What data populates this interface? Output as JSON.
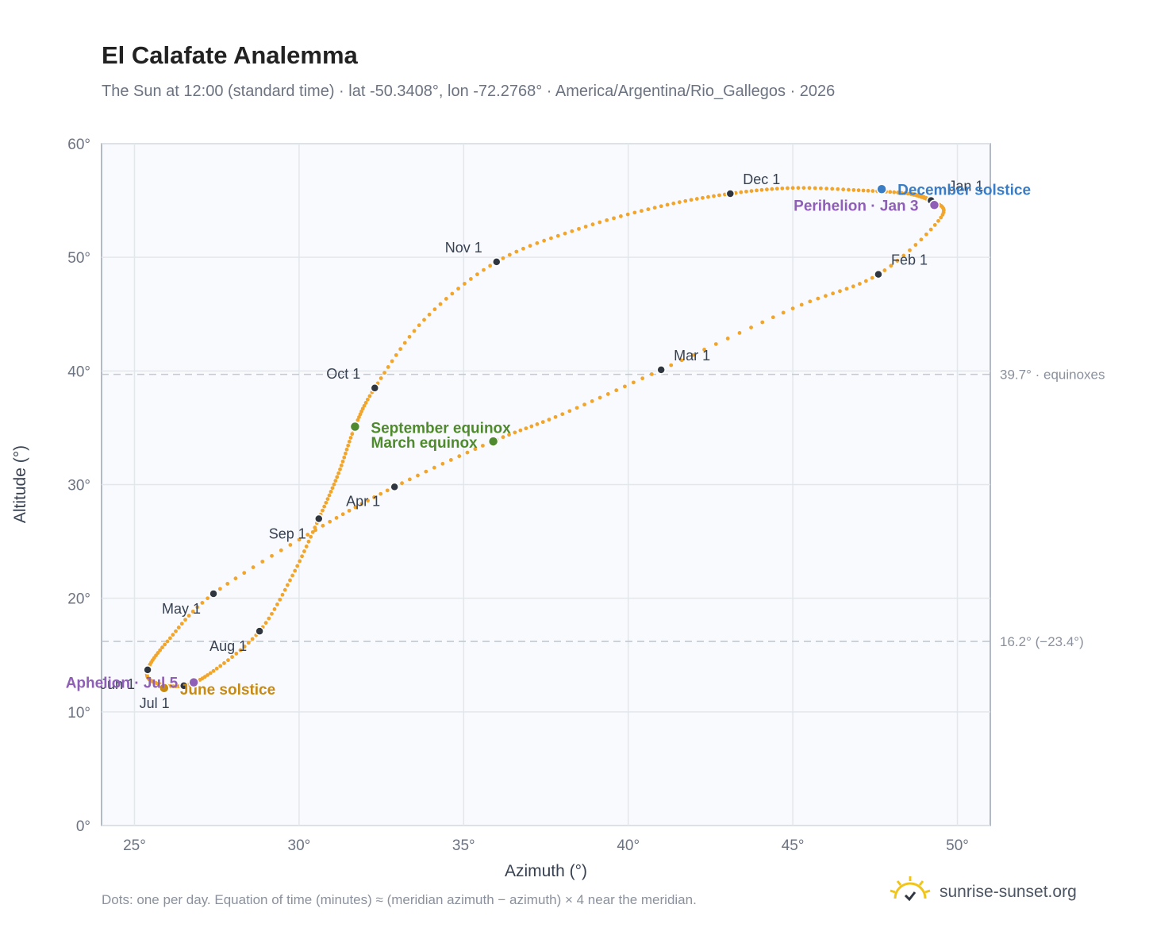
{
  "chart_data": {
    "type": "scatter",
    "title": "El Calafate Analemma",
    "subtitle": "The Sun at 12:00 (standard time) · lat -50.3408°, lon -72.2768° · America/Argentina/Rio_Gallegos · 2026",
    "xlabel": "Azimuth (°)",
    "ylabel": "Altitude (°)",
    "xlim": [
      24,
      51
    ],
    "ylim": [
      0,
      60
    ],
    "xticks": [
      25,
      30,
      35,
      40,
      45,
      50
    ],
    "yticks": [
      0,
      10,
      20,
      30,
      40,
      50,
      60
    ],
    "x_tick_labels": [
      "25°",
      "30°",
      "35°",
      "40°",
      "45°",
      "50°"
    ],
    "y_tick_labels": [
      "0°",
      "10°",
      "20°",
      "30°",
      "40°",
      "50°",
      "60°"
    ],
    "grid": true,
    "curve_color": "#f2a52b",
    "series": [
      {
        "points_per_day": true,
        "x": [
          48.6,
          49.2,
          49.5,
          47.6,
          45.0,
          41.0,
          38.0,
          35.8,
          32.9,
          30.5,
          27.4,
          26.0,
          25.4,
          25.6,
          26.5,
          27.4,
          28.8,
          29.8,
          30.6,
          31.2,
          31.7,
          32.3,
          33.8,
          36.0,
          38.5,
          41.0,
          43.1,
          45.0,
          47.0,
          48.5,
          49.2,
          48.6
        ],
        "y": [
          55.6,
          55.0,
          53.5,
          48.5,
          45.5,
          40.1,
          36.2,
          33.7,
          29.8,
          26.0,
          20.4,
          16.2,
          13.7,
          12.6,
          12.3,
          13.6,
          17.1,
          22.0,
          27.0,
          31.0,
          35.1,
          38.5,
          44.5,
          49.6,
          52.5,
          54.5,
          55.6,
          56.1,
          55.9,
          55.6,
          55.0,
          55.6
        ]
      }
    ],
    "month_markers": [
      {
        "label": "Jan 1",
        "x": 49.2,
        "y": 55.0,
        "color": "#2f3640"
      },
      {
        "label": "Feb 1",
        "x": 47.6,
        "y": 48.5,
        "color": "#2f3640"
      },
      {
        "label": "Mar 1",
        "x": 41.0,
        "y": 40.1,
        "color": "#2f3640"
      },
      {
        "label": "Apr 1",
        "x": 32.9,
        "y": 29.8,
        "color": "#2f3640"
      },
      {
        "label": "May 1",
        "x": 27.4,
        "y": 20.4,
        "color": "#2f3640"
      },
      {
        "label": "Jun 1",
        "x": 25.4,
        "y": 13.7,
        "color": "#2f3640"
      },
      {
        "label": "Jul 1",
        "x": 26.5,
        "y": 12.3,
        "color": "#2f3640"
      },
      {
        "label": "Aug 1",
        "x": 28.8,
        "y": 17.1,
        "color": "#2f3640"
      },
      {
        "label": "Sep 1",
        "x": 30.6,
        "y": 27.0,
        "color": "#2f3640"
      },
      {
        "label": "Oct 1",
        "x": 32.3,
        "y": 38.5,
        "color": "#2f3640"
      },
      {
        "label": "Nov 1",
        "x": 36.0,
        "y": 49.6,
        "color": "#2f3640"
      },
      {
        "label": "Dec 1",
        "x": 43.1,
        "y": 55.6,
        "color": "#2f3640"
      }
    ],
    "events": [
      {
        "label": "December solstice",
        "x": 47.7,
        "y": 56.0,
        "color": "#3b7dc4"
      },
      {
        "label": "Perihelion · Jan 3",
        "x": 49.3,
        "y": 54.6,
        "color": "#8f5fb8"
      },
      {
        "label": "September equinox",
        "x": 31.7,
        "y": 35.1,
        "color": "#4f8a2e"
      },
      {
        "label": "March equinox",
        "x": 35.9,
        "y": 33.8,
        "color": "#4f8a2e"
      },
      {
        "label": "June solstice",
        "x": 25.9,
        "y": 12.1,
        "color": "#c98a12"
      },
      {
        "label": "Aphelion · Jul 5",
        "x": 26.8,
        "y": 12.6,
        "color": "#8f5fb8"
      }
    ],
    "reference_lines": [
      {
        "y": 39.7,
        "label": "39.7° · equinoxes"
      },
      {
        "y": 16.2,
        "label": "16.2° (−23.4°)"
      }
    ]
  },
  "footnote": "Dots: one per day. Equation of time (minutes) ≈ (meridian azimuth − azimuth) × 4 near the meridian.",
  "brand": {
    "name": "sunrise-sunset.org",
    "icon": "sun-logo-icon"
  }
}
